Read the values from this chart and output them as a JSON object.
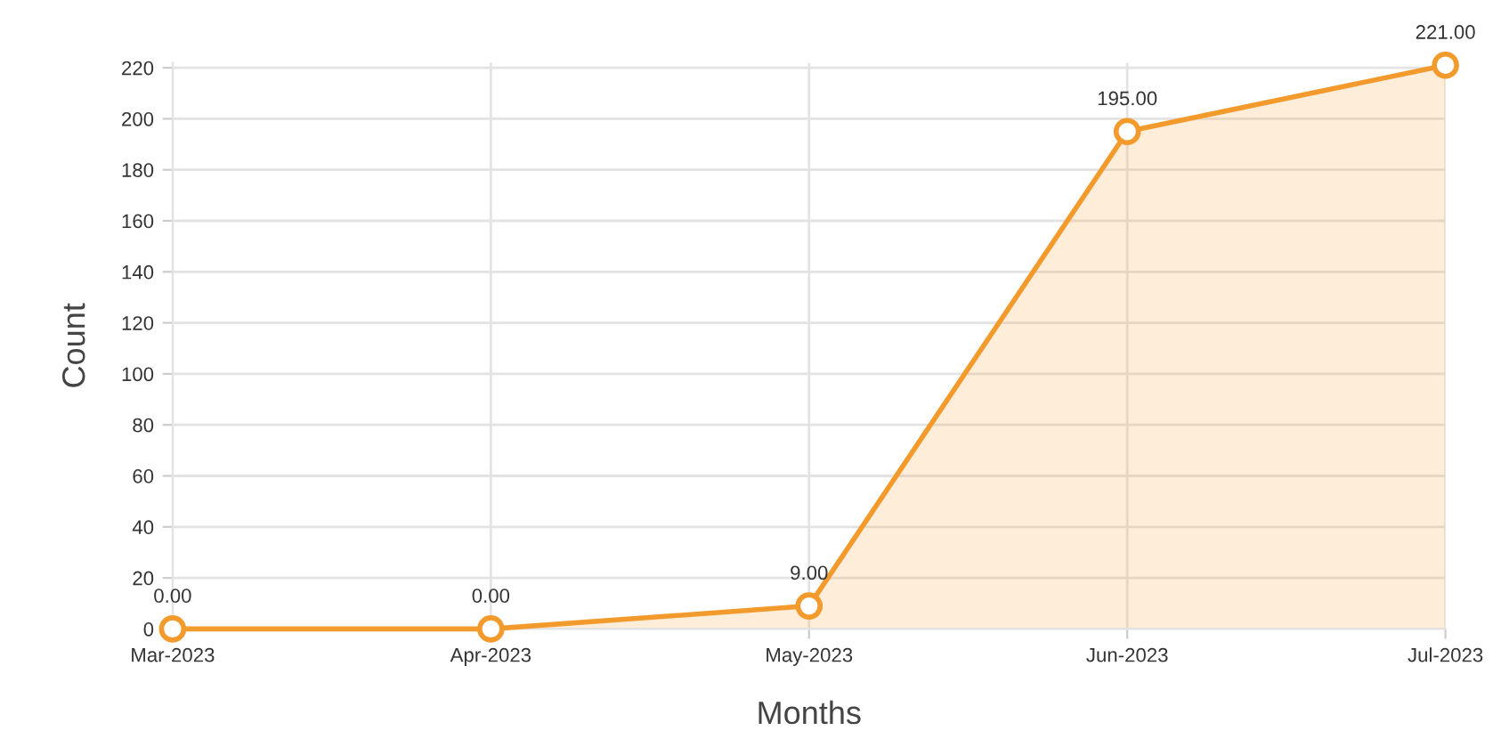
{
  "chart_data": {
    "type": "area",
    "xlabel": "Months",
    "ylabel": "Count",
    "categories": [
      "Mar-2023",
      "Apr-2023",
      "May-2023",
      "Jun-2023",
      "Jul-2023"
    ],
    "series": [
      {
        "color": "#f39a2c",
        "values": [
          0,
          0,
          9,
          195,
          221
        ],
        "value_labels": [
          "0.00",
          "0.00",
          "9.00",
          "195.00",
          "221.00"
        ]
      }
    ],
    "ylim": [
      0,
      222
    ],
    "yticks": [
      0,
      20,
      40,
      60,
      80,
      100,
      120,
      140,
      160,
      180,
      200,
      220
    ],
    "grid": true,
    "marker": "circle",
    "line_style": "solid"
  }
}
